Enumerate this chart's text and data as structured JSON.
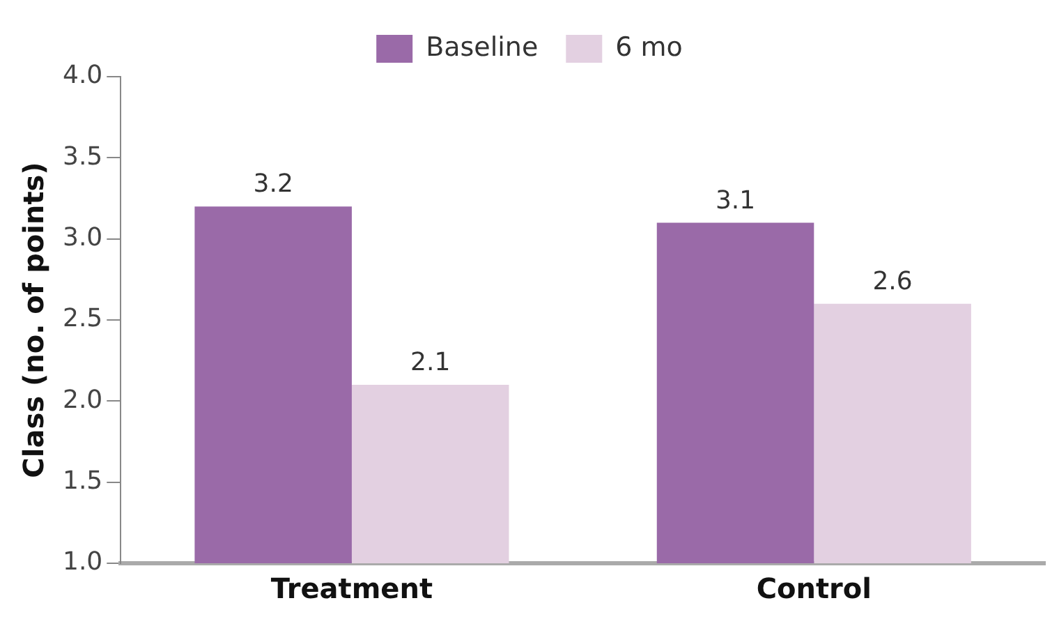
{
  "chart_data": {
    "type": "bar",
    "ylabel": "Class (no. of points)",
    "categories": [
      "Treatment",
      "Control"
    ],
    "series": [
      {
        "name": "Baseline",
        "color": "#9a6aa8",
        "values": [
          3.2,
          3.1
        ]
      },
      {
        "name": "6 mo",
        "color": "#e3d0e1",
        "values": [
          2.1,
          2.6
        ]
      }
    ],
    "ylim": [
      1.0,
      4.0
    ],
    "yticks": [
      {
        "value": 1,
        "label": "1.0"
      },
      {
        "value": 1.5,
        "label": "1.5"
      },
      {
        "value": 2,
        "label": "2.0"
      },
      {
        "value": 2.5,
        "label": "2.5"
      },
      {
        "value": 3,
        "label": "3.0"
      },
      {
        "value": 3.5,
        "label": "3.5"
      },
      {
        "value": 4,
        "label": "4.0"
      }
    ],
    "grid": false,
    "legend": "top",
    "data_labels": true
  }
}
